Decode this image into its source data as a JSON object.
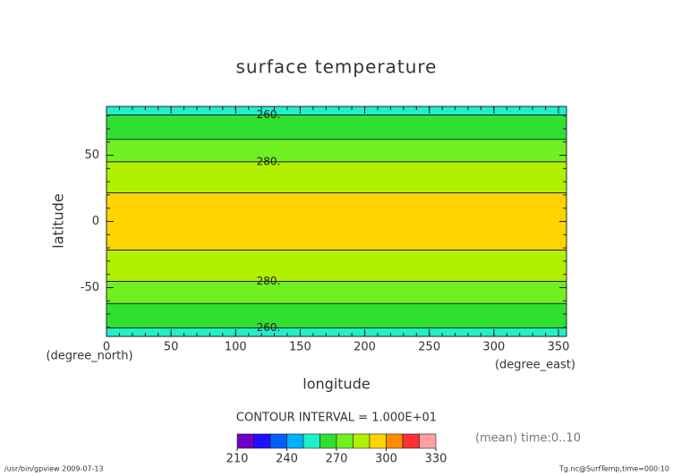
{
  "chart_data": {
    "type": "contour",
    "title": "surface temperature",
    "xlabel": "longitude",
    "ylabel": "latitude",
    "xunit": "(degree_east)",
    "yunit": "(degree_north)",
    "xlim": [
      0,
      356.25
    ],
    "ylim": [
      -86.86,
      86.86
    ],
    "xticks": [
      0,
      50,
      100,
      150,
      200,
      250,
      300,
      350
    ],
    "yticks": [
      -50,
      0,
      50
    ],
    "minor_step": 10,
    "contours": [
      {
        "level": 260,
        "label": "260.",
        "lat": 80.4
      },
      {
        "level": 270,
        "lat": 62
      },
      {
        "level": 280,
        "label": "280.",
        "lat": 45
      },
      {
        "level": 290,
        "lat": 21.6
      },
      {
        "level": 290,
        "lat": -21.6
      },
      {
        "level": 280,
        "label": "280.",
        "lat": -45.3
      },
      {
        "level": 270,
        "lat": -62
      },
      {
        "level": 260,
        "label": "260.",
        "lat": -80.4
      }
    ],
    "contour_interval": "CONTOUR INTERVAL = 1.000E+01",
    "colorbar": {
      "levels": [
        210,
        220,
        230,
        240,
        250,
        260,
        270,
        280,
        290,
        300,
        310,
        320,
        330
      ],
      "colors": [
        "#7000c8",
        "#2010ff",
        "#0060ff",
        "#00b0ff",
        "#20f0c8",
        "#30e030",
        "#70f020",
        "#b0f000",
        "#ffd400",
        "#ff8c00",
        "#ff3030",
        "#ffa0a0"
      ],
      "ticks": [
        210,
        240,
        270,
        300,
        330
      ]
    },
    "note": "(mean) time:0..10",
    "footer_left": "/usr/bin/gpview  2009-07-13",
    "footer_right": "Tg.nc@SurfTemp,time=000:10"
  }
}
